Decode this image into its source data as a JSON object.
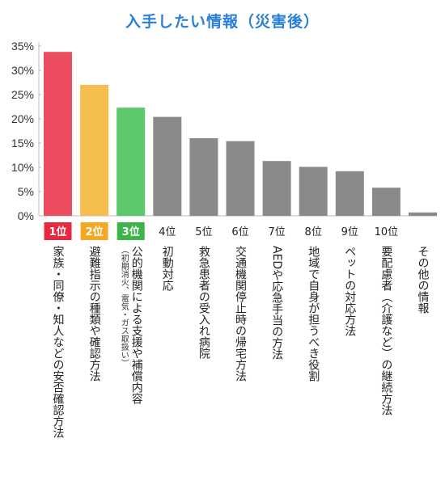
{
  "chart_data": {
    "type": "bar",
    "title": "入手したい情報（災害後）",
    "categories": [
      "家族・同僚・知人などの安否確認方法",
      "避難指示の種類や確認方法",
      "公的機関による支援や補償内容",
      "初動対応",
      "救急患者の受入れ病院",
      "交通機関停止時の帰宅方法",
      "AEDや応急手当の方法",
      "地域で自身が担うべき役割",
      "ペットの対応方法",
      "要配慮者（介護など）の継続方法",
      "その他の情報"
    ],
    "sublabels": [
      "",
      "",
      "（初期消火、電気・ガス取扱い）",
      "",
      "",
      "",
      "",
      "",
      "",
      "",
      ""
    ],
    "ranks": [
      "1位",
      "2位",
      "3位",
      "4位",
      "5位",
      "6位",
      "7位",
      "8位",
      "9位",
      "10位",
      ""
    ],
    "values": [
      33.8,
      27.0,
      22.3,
      20.4,
      16.0,
      15.4,
      11.3,
      10.1,
      9.2,
      5.8,
      0.7
    ],
    "bar_colors": [
      "#ec4d5f",
      "#f6be4e",
      "#5cc86b",
      "#8a8a8a",
      "#8a8a8a",
      "#8a8a8a",
      "#8a8a8a",
      "#8a8a8a",
      "#8a8a8a",
      "#8a8a8a",
      "#8a8a8a"
    ],
    "rank_badge_colors": [
      "#e8283c",
      "#f5a623",
      "#3bb44a"
    ],
    "yticks": [
      "0%",
      "5%",
      "10%",
      "15%",
      "20%",
      "25%",
      "30%",
      "35%"
    ],
    "ylim": [
      0,
      35
    ],
    "grid": false
  }
}
